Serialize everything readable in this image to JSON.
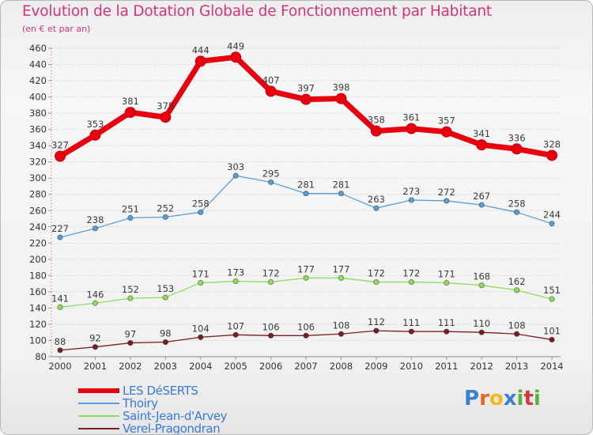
{
  "header": {
    "title": "Evolution de la Dotation Globale de Fonctionnement par Habitant",
    "subtitle": "(en € et par an)"
  },
  "logo": {
    "text": "Proxiti",
    "letter_colors": [
      "#3b7fd4",
      "#e8671e",
      "#f2b81c",
      "#3b7fd4",
      "#59b23a",
      "#d23a3a",
      "#59b23a"
    ]
  },
  "colors": {
    "title": "#d2347a",
    "legend_text": "#3b78d8",
    "tick_text": "#333333",
    "grid": "#c9c9c9"
  },
  "chart_data": {
    "type": "line",
    "title": "Evolution de la Dotation Globale de Fonctionnement par Habitant",
    "subtitle": "(en € et par an)",
    "x": [
      2000,
      2001,
      2002,
      2003,
      2004,
      2005,
      2006,
      2007,
      2008,
      2009,
      2010,
      2011,
      2012,
      2013,
      2014
    ],
    "ylim": [
      80,
      460
    ],
    "ytick_step": 20,
    "grid": "horizontal",
    "legend_position": "bottom-left",
    "series": [
      {
        "name": "LES DéSERTS",
        "color": "#e8000e",
        "values": [
          327,
          353,
          381,
          375,
          444,
          449,
          407,
          397,
          398,
          358,
          361,
          357,
          341,
          336,
          328
        ]
      },
      {
        "name": "Thoiry",
        "color": "#5a9fd4",
        "values": [
          227,
          238,
          251,
          252,
          258,
          303,
          295,
          281,
          281,
          263,
          273,
          272,
          267,
          258,
          244
        ]
      },
      {
        "name": "Saint-Jean-d'Arvey",
        "color": "#8fdd5a",
        "values": [
          141,
          146,
          152,
          153,
          171,
          173,
          172,
          177,
          177,
          172,
          172,
          171,
          168,
          162,
          151
        ]
      },
      {
        "name": "Verel-Pragondran",
        "color": "#7a1e24",
        "values": [
          88,
          92,
          97,
          98,
          104,
          107,
          106,
          106,
          108,
          112,
          111,
          111,
          110,
          108,
          101
        ]
      }
    ]
  }
}
